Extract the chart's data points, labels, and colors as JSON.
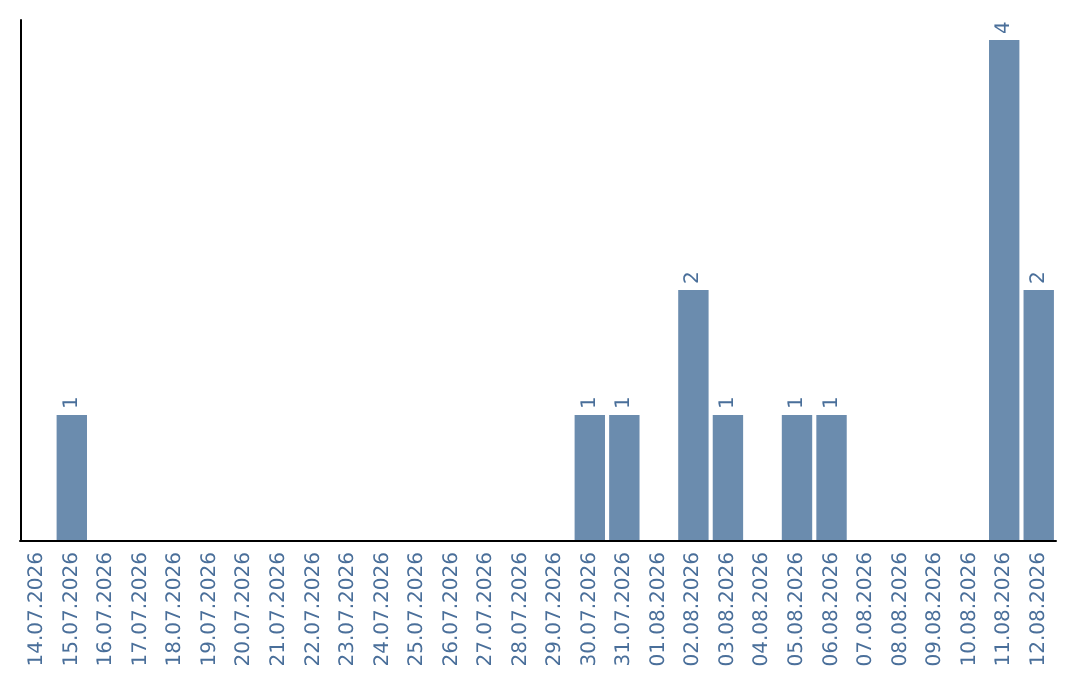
{
  "chart_data": {
    "type": "bar",
    "categories": [
      "14.07.2026",
      "15.07.2026",
      "16.07.2026",
      "17.07.2026",
      "18.07.2026",
      "19.07.2026",
      "20.07.2026",
      "21.07.2026",
      "22.07.2026",
      "23.07.2026",
      "24.07.2026",
      "25.07.2026",
      "26.07.2026",
      "27.07.2026",
      "28.07.2026",
      "29.07.2026",
      "30.07.2026",
      "31.07.2026",
      "01.08.2026",
      "02.08.2026",
      "03.08.2026",
      "04.08.2026",
      "05.08.2026",
      "06.08.2026",
      "07.08.2026",
      "08.08.2026",
      "09.08.2026",
      "10.08.2026",
      "11.08.2026",
      "12.08.2026"
    ],
    "values": [
      null,
      1,
      null,
      null,
      null,
      null,
      null,
      null,
      null,
      null,
      null,
      null,
      null,
      null,
      null,
      null,
      1,
      1,
      null,
      2,
      1,
      null,
      1,
      1,
      null,
      null,
      null,
      null,
      4,
      2
    ],
    "color": "#6b8cae",
    "data_labels": true,
    "grid": false
  }
}
